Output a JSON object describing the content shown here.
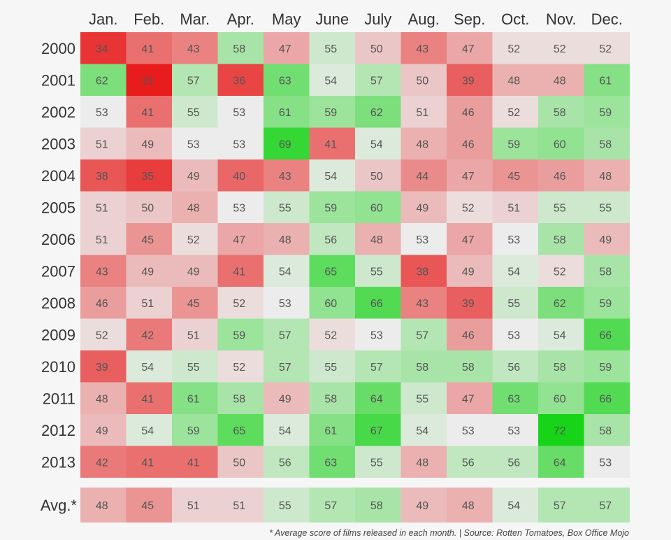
{
  "chart_data": {
    "type": "heatmap",
    "columns": [
      "Jan.",
      "Feb.",
      "Mar.",
      "Apr.",
      "May",
      "June",
      "July",
      "Aug.",
      "Sep.",
      "Oct.",
      "Nov.",
      "Dec."
    ],
    "rows": [
      "2000",
      "2001",
      "2002",
      "2003",
      "2004",
      "2005",
      "2006",
      "2007",
      "2008",
      "2009",
      "2010",
      "2011",
      "2012",
      "2013"
    ],
    "values": [
      [
        34,
        41,
        43,
        58,
        47,
        55,
        50,
        43,
        47,
        52,
        52,
        52
      ],
      [
        62,
        31,
        57,
        36,
        63,
        54,
        57,
        50,
        39,
        48,
        48,
        61
      ],
      [
        53,
        41,
        55,
        53,
        61,
        59,
        62,
        51,
        46,
        52,
        58,
        59
      ],
      [
        51,
        49,
        53,
        53,
        69,
        41,
        54,
        48,
        46,
        59,
        60,
        58
      ],
      [
        38,
        35,
        49,
        40,
        43,
        54,
        50,
        44,
        47,
        45,
        46,
        48
      ],
      [
        51,
        50,
        48,
        53,
        55,
        59,
        60,
        49,
        52,
        51,
        55,
        55
      ],
      [
        51,
        45,
        52,
        47,
        48,
        56,
        48,
        53,
        47,
        53,
        58,
        49
      ],
      [
        43,
        49,
        49,
        41,
        54,
        65,
        55,
        38,
        49,
        54,
        52,
        58
      ],
      [
        46,
        51,
        45,
        52,
        53,
        60,
        66,
        43,
        39,
        55,
        62,
        59
      ],
      [
        52,
        42,
        51,
        59,
        57,
        52,
        53,
        57,
        46,
        53,
        54,
        66
      ],
      [
        39,
        54,
        55,
        52,
        57,
        55,
        57,
        58,
        58,
        56,
        58,
        59
      ],
      [
        48,
        41,
        61,
        58,
        49,
        58,
        64,
        55,
        47,
        63,
        60,
        66
      ],
      [
        49,
        54,
        59,
        65,
        54,
        61,
        67,
        54,
        53,
        53,
        72,
        58
      ],
      [
        42,
        41,
        41,
        50,
        56,
        63,
        55,
        48,
        56,
        56,
        64,
        53
      ]
    ],
    "average": {
      "label": "Avg.*",
      "values": [
        48,
        45,
        51,
        51,
        55,
        57,
        58,
        49,
        48,
        54,
        57,
        57
      ]
    },
    "footnote": "* Average score of films released in each month. | Source: Rotten Tomatoes, Box Office Mojo",
    "colors": {
      "low": "#e81c1c",
      "mid": "#ececec",
      "high": "#18d418",
      "midpoint": 53
    }
  }
}
